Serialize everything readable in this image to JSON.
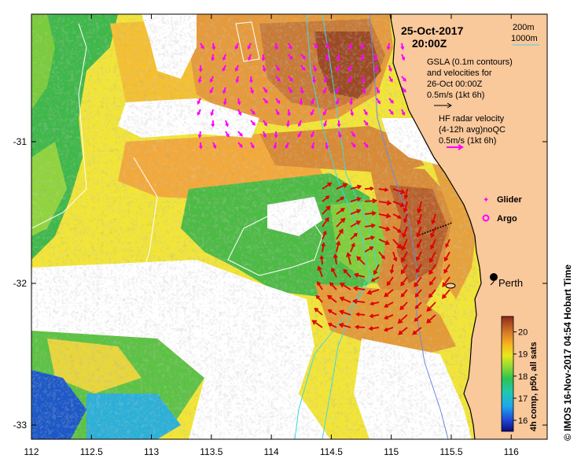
{
  "map": {
    "date_title": "25-Oct-2017",
    "time_title": "20:00Z",
    "contour_legend": [
      "200m",
      "1000m"
    ],
    "gsla_text": [
      "GSLA (0.1m contours)",
      "and velocities for",
      "26-Oct 00:00Z",
      "0.5m/s (1kt 6h)"
    ],
    "hf_text": [
      "HF radar velocity",
      "(4-12h avg)noQC",
      "0.5m/s (1kt 6h)"
    ],
    "glider_label": "Glider",
    "argo_label": "Argo",
    "city_label": "Perth",
    "colorbar_title": "4h comp, p50, all sats",
    "colorbar_ticks": [
      "20",
      "19",
      "18",
      "17",
      "16"
    ],
    "side_credit": "© IMOS 16-Nov-2017 04:54 Hobart Time",
    "x_ticks": [
      "112",
      "112.5",
      "113",
      "113.5",
      "114",
      "114.5",
      "115",
      "115.5",
      "116"
    ],
    "y_ticks": [
      "-31",
      "-32",
      "-33"
    ],
    "colors": {
      "land": "#f9c89b",
      "contour_200": "#6a8ae0",
      "contour_1000": "#40d8e0",
      "radar_arrow": "#ff00ff",
      "gsla_arrow": "#e00000"
    }
  },
  "chart_data": {
    "type": "heatmap",
    "xlim": [
      112,
      116.3
    ],
    "ylim": [
      -33.1,
      -30.1
    ],
    "x_ticks": [
      112,
      112.5,
      113,
      113.5,
      114,
      114.5,
      115,
      115.5,
      116
    ],
    "y_ticks": [
      -31,
      -32,
      -33
    ],
    "colorbar_range": [
      15.5,
      20.7
    ],
    "colorbar_ticks": [
      16,
      17,
      18,
      19,
      20
    ],
    "city": {
      "name": "Perth",
      "lon": 115.86,
      "lat": -31.95
    }
  }
}
